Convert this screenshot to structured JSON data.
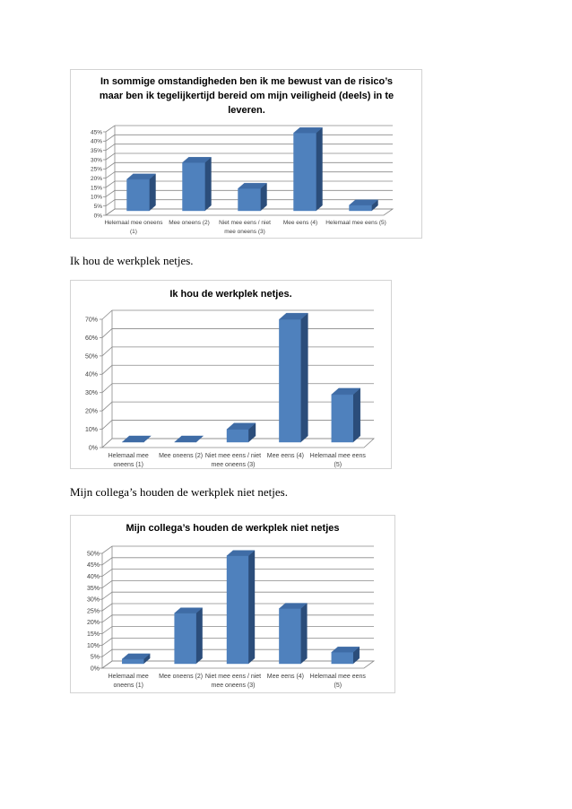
{
  "captions": {
    "chart2_heading": "Ik hou de werkplek netjes.",
    "chart3_heading": "Mijn collega’s houden de werkplek niet netjes."
  },
  "colors": {
    "bar_front": "#4f81bd",
    "bar_top": "#3f6ca6",
    "bar_side": "#2b4d7a",
    "gridline": "#8a8a8a",
    "axis_text": "#404040"
  },
  "chart_data": [
    {
      "type": "bar",
      "style": "3d-column",
      "title": "In sommige omstandigheden ben ik me bewust van de risico’s maar ben ik tegelijkertijd bereid om mijn veiligheid (deels) in te leveren.",
      "categories": [
        "Helemaal mee oneens (1)",
        "Mee oneens (2)",
        "Niet mee eens / niet mee oneens (3)",
        "Mee eens (4)",
        "Helemaal mee eens (5)"
      ],
      "values": [
        17,
        26,
        12,
        42,
        3
      ],
      "unit": "%",
      "ylim": [
        0,
        45
      ],
      "ytick_labels": [
        "0%",
        "5%",
        "10%",
        "15%",
        "20%",
        "25%",
        "30%",
        "35%",
        "40%",
        "45%"
      ],
      "grid": true,
      "legend": "none"
    },
    {
      "type": "bar",
      "style": "3d-column",
      "title": "Ik hou de werkplek netjes.",
      "categories": [
        "Helemaal mee oneens (1)",
        "Mee oneens (2)",
        "Niet mee eens / niet mee oneens (3)",
        "Mee eens (4)",
        "Helemaal mee eens (5)"
      ],
      "values": [
        0,
        0,
        7,
        67,
        26
      ],
      "unit": "%",
      "ylim": [
        0,
        70
      ],
      "ytick_labels": [
        "0%",
        "10%",
        "20%",
        "30%",
        "40%",
        "50%",
        "60%",
        "70%"
      ],
      "grid": true,
      "legend": "none"
    },
    {
      "type": "bar",
      "style": "3d-column",
      "title": "Mijn collega’s houden de werkplek niet netjes",
      "categories": [
        "Helemaal mee oneens (1)",
        "Mee oneens (2)",
        "Niet mee eens / niet mee oneens (3)",
        "Mee eens (4)",
        "Helemaal mee eens (5)"
      ],
      "values": [
        2,
        22,
        47,
        24,
        5
      ],
      "unit": "%",
      "ylim": [
        0,
        50
      ],
      "ytick_labels": [
        "0%",
        "5%",
        "10%",
        "15%",
        "20%",
        "25%",
        "30%",
        "35%",
        "40%",
        "45%",
        "50%"
      ],
      "grid": true,
      "legend": "none"
    }
  ]
}
